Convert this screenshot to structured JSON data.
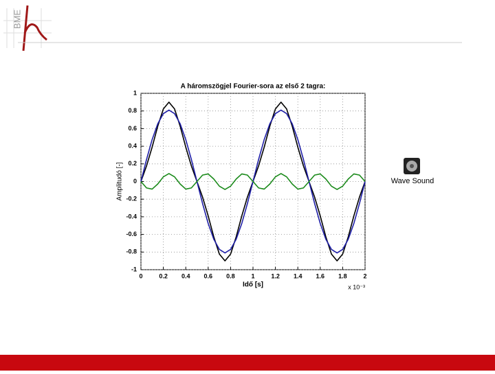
{
  "slide": {
    "logo_text": "BME",
    "icon_label": "Wave Sound"
  },
  "chart_data": {
    "type": "line",
    "title": "A háromszögjel Fourier-sora az első 2 tagra:",
    "x_label": "Idő [s]",
    "y_label": "Amplitudó [-]",
    "x_multiplier": "x 10⁻³",
    "x": [
      0,
      0.05,
      0.1,
      0.15,
      0.2,
      0.25,
      0.3,
      0.35,
      0.4,
      0.45,
      0.5,
      0.55,
      0.6,
      0.65,
      0.7,
      0.75,
      0.8,
      0.85,
      0.9,
      0.95,
      1,
      1.05,
      1.1,
      1.15,
      1.2,
      1.25,
      1.3,
      1.35,
      1.4,
      1.45,
      1.5,
      1.55,
      1.6,
      1.65,
      1.7,
      1.75,
      1.8,
      1.85,
      1.9,
      1.95,
      2
    ],
    "series": [
      {
        "color": "#000000",
        "values": [
          0,
          0.177,
          0.39,
          0.627,
          0.823,
          0.9,
          0.823,
          0.627,
          0.39,
          0.177,
          0,
          -0.177,
          -0.39,
          -0.627,
          -0.823,
          -0.9,
          -0.823,
          -0.627,
          -0.39,
          -0.177,
          0,
          0.177,
          0.39,
          0.627,
          0.823,
          0.9,
          0.823,
          0.627,
          0.39,
          0.177,
          0,
          -0.177,
          -0.39,
          -0.627,
          -0.823,
          -0.9,
          -0.823,
          -0.627,
          -0.39,
          -0.177,
          0
        ]
      },
      {
        "color": "#1f1fa8",
        "values": [
          0,
          0.25,
          0.476,
          0.655,
          0.77,
          0.81,
          0.77,
          0.655,
          0.476,
          0.25,
          0,
          -0.25,
          -0.476,
          -0.655,
          -0.77,
          -0.81,
          -0.77,
          -0.655,
          -0.476,
          -0.25,
          0,
          0.25,
          0.476,
          0.655,
          0.77,
          0.81,
          0.77,
          0.655,
          0.476,
          0.25,
          0,
          -0.25,
          -0.476,
          -0.655,
          -0.77,
          -0.81,
          -0.77,
          -0.655,
          -0.476,
          -0.25,
          0
        ]
      },
      {
        "color": "#1a8a1a",
        "values": [
          0,
          -0.073,
          -0.086,
          -0.028,
          0.053,
          0.09,
          0.053,
          -0.028,
          -0.086,
          -0.073,
          0,
          0.073,
          0.086,
          0.028,
          -0.053,
          -0.09,
          -0.053,
          0.028,
          0.086,
          0.073,
          0,
          -0.073,
          -0.086,
          -0.028,
          0.053,
          0.09,
          0.053,
          -0.028,
          -0.086,
          -0.073,
          0,
          0.073,
          0.086,
          0.028,
          -0.053,
          -0.09,
          -0.053,
          0.028,
          0.086,
          0.073,
          0
        ]
      }
    ],
    "xlim": [
      0,
      2
    ],
    "ylim": [
      -1,
      1
    ],
    "xticks": [
      0,
      0.2,
      0.4,
      0.6,
      0.8,
      1,
      1.2,
      1.4,
      1.6,
      1.8,
      2
    ],
    "yticks": [
      -1,
      -0.8,
      -0.6,
      -0.4,
      -0.2,
      0,
      0.2,
      0.4,
      0.6,
      0.8,
      1
    ],
    "grid": true
  }
}
